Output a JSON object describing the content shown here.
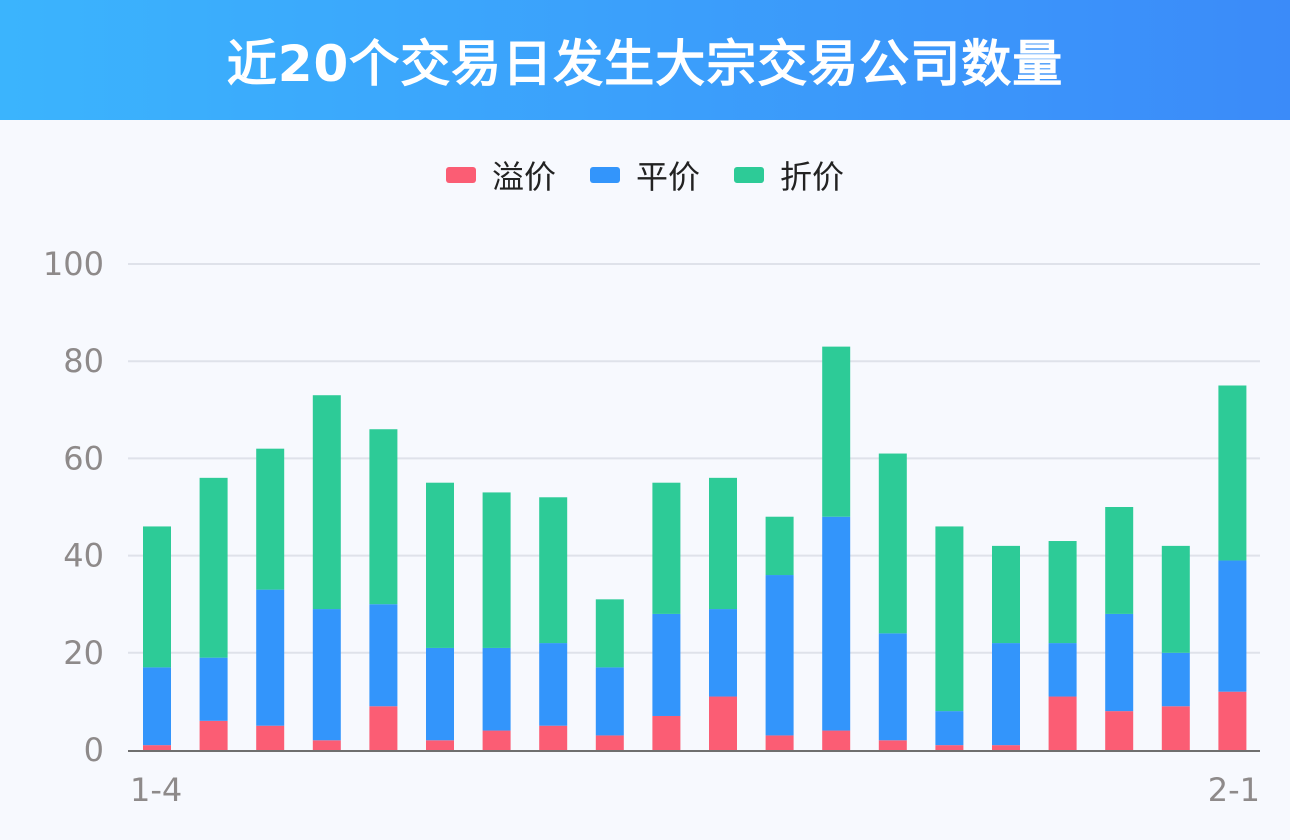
{
  "title": "近20个交易日发生大宗交易公司数量",
  "colors": {
    "header_start": "#3bb4fd",
    "header_end": "#3b8bf9",
    "premium": "#fb5d74",
    "par": "#3395fb",
    "discount": "#2dcb97"
  },
  "legend": [
    {
      "label": "溢价",
      "color": "#fb5d74"
    },
    {
      "label": "平价",
      "color": "#3395fb"
    },
    {
      "label": "折价",
      "color": "#2dcb97"
    }
  ],
  "chart_data": {
    "type": "bar",
    "stacked": true,
    "title": "近20个交易日发生大宗交易公司数量",
    "categories": [
      "1-4",
      "",
      "",
      "",
      "",
      "",
      "",
      "",
      "",
      "",
      "",
      "",
      "",
      "",
      "",
      "",
      "",
      "",
      "",
      "2-1"
    ],
    "x_tick_labels": [
      "1-4",
      "2-1"
    ],
    "ylim": [
      0,
      100
    ],
    "yticks": [
      0,
      20,
      40,
      60,
      80,
      100
    ],
    "grid": true,
    "legend_position": "top",
    "series": [
      {
        "name": "溢价",
        "color": "#fb5d74",
        "values": [
          1,
          6,
          5,
          2,
          9,
          2,
          4,
          5,
          3,
          7,
          11,
          3,
          4,
          2,
          1,
          1,
          11,
          8,
          9,
          12
        ]
      },
      {
        "name": "平价",
        "color": "#3395fb",
        "values": [
          16,
          13,
          28,
          27,
          21,
          19,
          17,
          17,
          14,
          21,
          18,
          33,
          44,
          22,
          7,
          21,
          11,
          20,
          11,
          27
        ]
      },
      {
        "name": "折价",
        "color": "#2dcb97",
        "values": [
          29,
          37,
          29,
          44,
          36,
          34,
          32,
          30,
          14,
          27,
          27,
          12,
          35,
          37,
          38,
          20,
          21,
          22,
          22,
          36
        ]
      }
    ]
  }
}
